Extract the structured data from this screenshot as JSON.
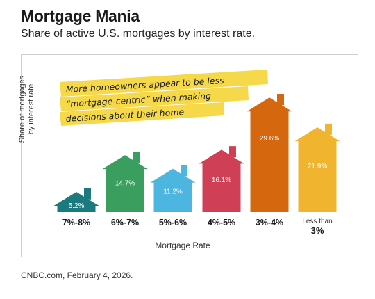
{
  "header": {
    "title": "Mortgage Mania",
    "subtitle": "Share of active U.S. mortgages by interest rate."
  },
  "annotation": {
    "lines": [
      "More homeowners appear to be less",
      "“mortgage-centric” when making",
      "decisions about their home"
    ],
    "highlight_color": "#f5d94a"
  },
  "source": "CNBC.com, February 4, 2026.",
  "chart_data": {
    "type": "bar",
    "categories": [
      "7%-8%",
      "6%-7%",
      "5%-6%",
      "4%-5%",
      "3%-4%",
      "Less than 3%"
    ],
    "values": [
      5.2,
      14.7,
      11.2,
      16.1,
      29.6,
      21.9
    ],
    "data_labels": [
      "5.2%",
      "14.7%",
      "11.2%",
      "16.1%",
      "29.6%",
      "21.9%"
    ],
    "xlabel": "Mortgage Rate",
    "ylabel": "Share of mortgages by interest rate",
    "ylim": [
      0,
      30
    ],
    "grid": false,
    "bar_shape": "house",
    "colors": [
      "#1a7a7e",
      "#3a9f5e",
      "#4db6e0",
      "#cf4057",
      "#d5680e",
      "#f0b42f"
    ]
  }
}
